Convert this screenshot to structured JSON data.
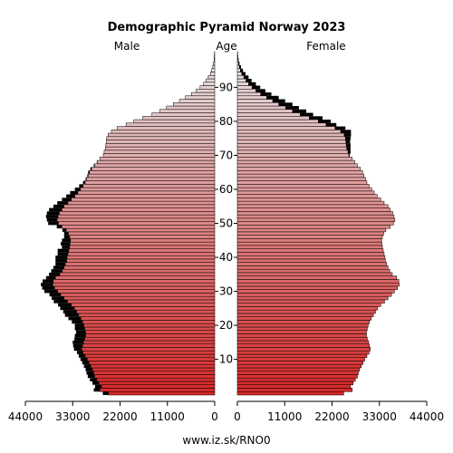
{
  "chart_data": {
    "type": "bar",
    "title": "Demographic Pyramid Norway 2023",
    "left_label": "Male",
    "center_label": "Age",
    "right_label": "Female",
    "source": "www.iz.sk/RNO0",
    "left_ticks": [
      "44000",
      "33000",
      "22000",
      "11000",
      "0"
    ],
    "right_ticks": [
      "0",
      "11000",
      "22000",
      "33000",
      "44000"
    ],
    "xlim": [
      0,
      44000
    ],
    "age_ticks": [
      10,
      20,
      30,
      40,
      50,
      60,
      70,
      80,
      90
    ],
    "age_range": [
      0,
      100
    ],
    "colors": {
      "young": "#d62728",
      "old": "#e6e6e6",
      "outline": "#000000",
      "excess": "#000000"
    },
    "ages": [
      0,
      1,
      2,
      3,
      4,
      5,
      6,
      7,
      8,
      9,
      10,
      11,
      12,
      13,
      14,
      15,
      16,
      17,
      18,
      19,
      20,
      21,
      22,
      23,
      24,
      25,
      26,
      27,
      28,
      29,
      30,
      31,
      32,
      33,
      34,
      35,
      36,
      37,
      38,
      39,
      40,
      41,
      42,
      43,
      44,
      45,
      46,
      47,
      48,
      49,
      50,
      51,
      52,
      53,
      54,
      55,
      56,
      57,
      58,
      59,
      60,
      61,
      62,
      63,
      64,
      65,
      66,
      67,
      68,
      69,
      70,
      71,
      72,
      73,
      74,
      75,
      76,
      77,
      78,
      79,
      80,
      81,
      82,
      83,
      84,
      85,
      86,
      87,
      88,
      89,
      90,
      91,
      92,
      93,
      94,
      95,
      96,
      97,
      98,
      99,
      100
    ],
    "male": [
      26000,
      28100,
      27800,
      28400,
      29000,
      29500,
      29800,
      30000,
      30400,
      30800,
      31200,
      31600,
      32000,
      32700,
      32900,
      33000,
      32600,
      32500,
      32200,
      32500,
      32500,
      33200,
      34000,
      34800,
      35200,
      35900,
      36400,
      37400,
      37900,
      38400,
      39600,
      40100,
      40400,
      40000,
      39200,
      38500,
      38000,
      37500,
      37000,
      37000,
      37000,
      36500,
      36500,
      35500,
      35800,
      35500,
      35000,
      35000,
      35400,
      36700,
      38700,
      39000,
      39200,
      39000,
      38500,
      37500,
      36600,
      35500,
      34500,
      33600,
      32500,
      31500,
      30600,
      30000,
      29600,
      29400,
      28900,
      28100,
      27400,
      26700,
      25900,
      25700,
      25400,
      25300,
      25200,
      25100,
      24800,
      24000,
      22700,
      20600,
      18800,
      16700,
      14600,
      12800,
      11200,
      9600,
      8200,
      6800,
      5400,
      4300,
      3400,
      2600,
      2000,
      1500,
      1000,
      700,
      450,
      280,
      160,
      90,
      50
    ],
    "female": [
      24700,
      26700,
      26300,
      26900,
      27400,
      27900,
      28100,
      28400,
      28800,
      29200,
      29600,
      30100,
      30600,
      30900,
      30700,
      30500,
      30200,
      30000,
      30000,
      30200,
      30400,
      30700,
      31100,
      31600,
      32100,
      32600,
      33300,
      34200,
      35000,
      35800,
      36500,
      37200,
      37600,
      37500,
      37000,
      36000,
      35400,
      35000,
      34700,
      34400,
      34300,
      34100,
      33900,
      33700,
      33600,
      33500,
      33700,
      34000,
      34500,
      35500,
      36300,
      36600,
      36400,
      36100,
      35500,
      35000,
      34100,
      33300,
      32500,
      31800,
      31200,
      30600,
      30100,
      29800,
      29400,
      29100,
      28600,
      27900,
      27300,
      26700,
      26100,
      26300,
      26300,
      26300,
      26200,
      26300,
      26400,
      26400,
      25100,
      23000,
      21700,
      19800,
      17600,
      16000,
      14300,
      12800,
      11100,
      9600,
      7900,
      6500,
      5300,
      4300,
      3300,
      2600,
      1900,
      1300,
      850,
      500,
      300,
      160,
      80
    ]
  }
}
